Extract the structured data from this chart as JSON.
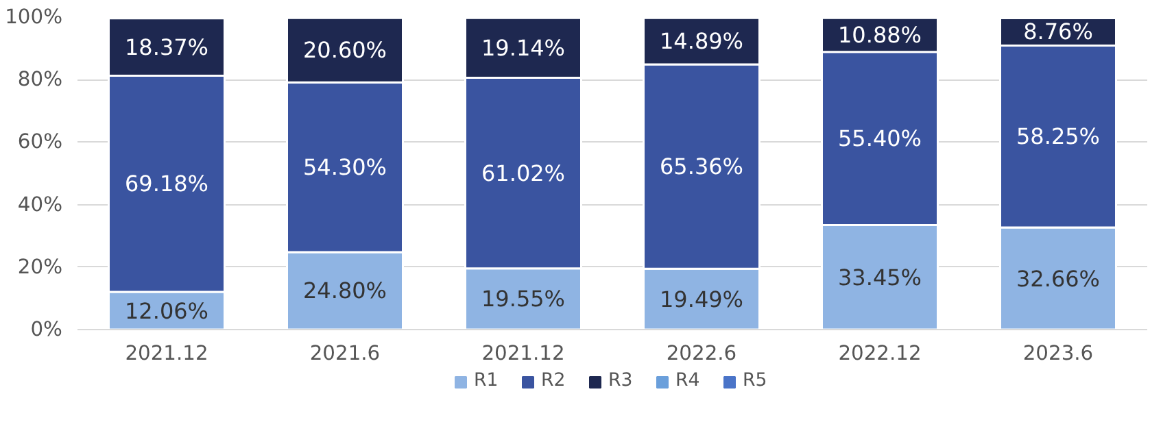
{
  "chart_data": {
    "type": "bar",
    "stacked": true,
    "categories": [
      "2021.12",
      "2021.6",
      "2021.12",
      "2022.6",
      "2022.12",
      "2023.6"
    ],
    "series": [
      {
        "name": "R1",
        "color": "#8fb4e3",
        "values": [
          12.06,
          24.8,
          19.55,
          19.49,
          33.45,
          32.66
        ],
        "value_labels": [
          "12.06%",
          "24.80%",
          "19.55%",
          "19.49%",
          "33.45%",
          "32.66%"
        ]
      },
      {
        "name": "R2",
        "color": "#3a54a0",
        "values": [
          69.18,
          54.3,
          61.02,
          65.36,
          55.4,
          58.25
        ],
        "value_labels": [
          "69.18%",
          "54.30%",
          "61.02%",
          "65.36%",
          "55.40%",
          "58.25%"
        ]
      },
      {
        "name": "R3",
        "color": "#1e2850",
        "values": [
          18.37,
          20.6,
          19.14,
          14.89,
          10.88,
          8.76
        ],
        "value_labels": [
          "18.37%",
          "20.60%",
          "19.14%",
          "14.89%",
          "10.88%",
          "8.76%"
        ]
      },
      {
        "name": "R4",
        "color": "#6a9fdb",
        "values": [
          null,
          null,
          null,
          null,
          null,
          null
        ]
      },
      {
        "name": "R5",
        "color": "#4a74c8",
        "values": [
          null,
          null,
          null,
          null,
          null,
          null
        ]
      }
    ],
    "ylim": [
      0,
      100
    ],
    "yticks": [
      {
        "value": 0,
        "label": "0%"
      },
      {
        "value": 20,
        "label": "20%"
      },
      {
        "value": 40,
        "label": "40%"
      },
      {
        "value": 60,
        "label": "60%"
      },
      {
        "value": 80,
        "label": "80%"
      },
      {
        "value": 100,
        "label": "100%"
      }
    ],
    "grid": "y",
    "legend": "bottom"
  }
}
